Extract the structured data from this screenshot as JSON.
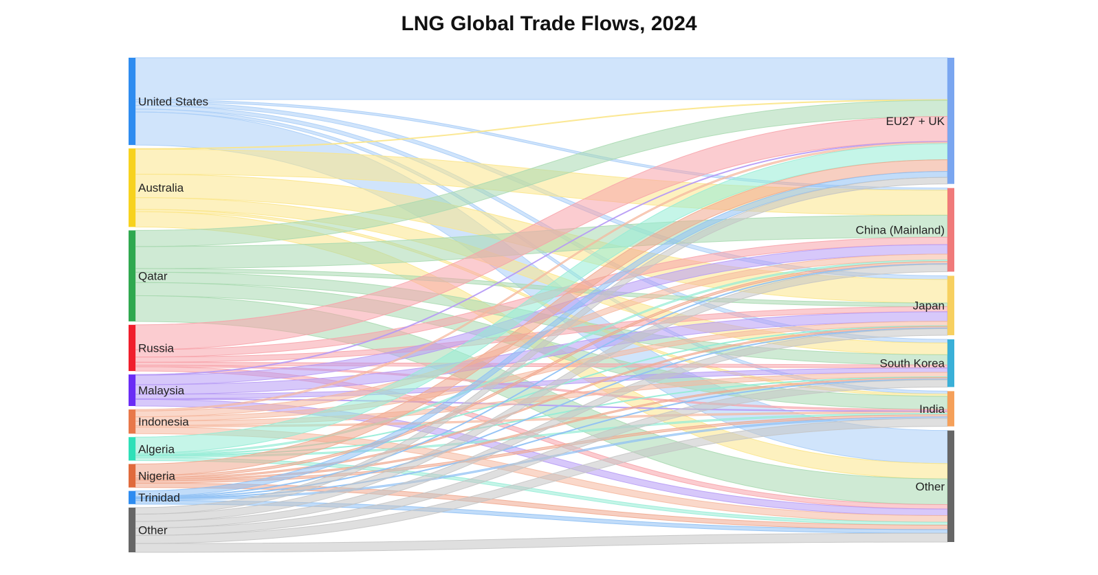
{
  "title": "LNG Global Trade Flows, 2024",
  "chart_data": {
    "type": "sankey",
    "title": "LNG Global Trade Flows, 2024",
    "sources": [
      {
        "name": "United States",
        "color": "#2e8cf0"
      },
      {
        "name": "Australia",
        "color": "#f7d21e"
      },
      {
        "name": "Qatar",
        "color": "#2fa84f"
      },
      {
        "name": "Russia",
        "color": "#f01e2c"
      },
      {
        "name": "Malaysia",
        "color": "#6a2cf5"
      },
      {
        "name": "Indonesia",
        "color": "#e8784a"
      },
      {
        "name": "Algeria",
        "color": "#2ee0b8"
      },
      {
        "name": "Nigeria",
        "color": "#e06a3c"
      },
      {
        "name": "Trinidad",
        "color": "#2e8cf0"
      },
      {
        "name": "Other",
        "color": "#666666"
      }
    ],
    "targets": [
      {
        "name": "EU27 + UK",
        "color": "#7aa6f0"
      },
      {
        "name": "China (Mainland)",
        "color": "#f07a7a"
      },
      {
        "name": "Japan",
        "color": "#f7d060"
      },
      {
        "name": "South Korea",
        "color": "#3ab0d8"
      },
      {
        "name": "India",
        "color": "#f5a05a"
      },
      {
        "name": "Other",
        "color": "#666666"
      }
    ],
    "link_colors": {
      "United States": "#a9cdf7",
      "Australia": "#fbe58a",
      "Qatar": "#a8d9b0",
      "Russia": "#f7a3aa",
      "Malaysia": "#b69af5",
      "Indonesia": "#f5b89f",
      "Algeria": "#95ecd6",
      "Nigeria": "#f0a88e",
      "Trinidad": "#8ec0f4",
      "Other": "#c4c4c4"
    },
    "flows": [
      {
        "source": "United States",
        "target": "EU27 + UK",
        "value": 57
      },
      {
        "source": "United States",
        "target": "China (Mainland)",
        "value": 3
      },
      {
        "source": "United States",
        "target": "Japan",
        "value": 5
      },
      {
        "source": "United States",
        "target": "South Korea",
        "value": 5
      },
      {
        "source": "United States",
        "target": "India",
        "value": 4
      },
      {
        "source": "United States",
        "target": "Other",
        "value": 45
      },
      {
        "source": "Australia",
        "target": "EU27 + UK",
        "value": 1
      },
      {
        "source": "Australia",
        "target": "China (Mainland)",
        "value": 34
      },
      {
        "source": "Australia",
        "target": "Japan",
        "value": 32
      },
      {
        "source": "Australia",
        "target": "South Korea",
        "value": 16
      },
      {
        "source": "Australia",
        "target": "India",
        "value": 3
      },
      {
        "source": "Australia",
        "target": "Other",
        "value": 21
      },
      {
        "source": "Qatar",
        "target": "EU27 + UK",
        "value": 22
      },
      {
        "source": "Qatar",
        "target": "China (Mainland)",
        "value": 30
      },
      {
        "source": "Qatar",
        "target": "Japan",
        "value": 5
      },
      {
        "source": "Qatar",
        "target": "South Korea",
        "value": 14
      },
      {
        "source": "Qatar",
        "target": "India",
        "value": 18
      },
      {
        "source": "Qatar",
        "target": "Other",
        "value": 35
      },
      {
        "source": "Russia",
        "target": "EU27 + UK",
        "value": 34
      },
      {
        "source": "Russia",
        "target": "China (Mainland)",
        "value": 10
      },
      {
        "source": "Russia",
        "target": "Japan",
        "value": 7
      },
      {
        "source": "Russia",
        "target": "South Korea",
        "value": 4
      },
      {
        "source": "Russia",
        "target": "India",
        "value": 2
      },
      {
        "source": "Russia",
        "target": "Other",
        "value": 6
      },
      {
        "source": "Malaysia",
        "target": "EU27 + UK",
        "value": 1
      },
      {
        "source": "Malaysia",
        "target": "China (Mainland)",
        "value": 13
      },
      {
        "source": "Malaysia",
        "target": "Japan",
        "value": 13
      },
      {
        "source": "Malaysia",
        "target": "South Korea",
        "value": 6
      },
      {
        "source": "Malaysia",
        "target": "India",
        "value": 1
      },
      {
        "source": "Malaysia",
        "target": "Other",
        "value": 9
      },
      {
        "source": "Indonesia",
        "target": "EU27 + UK",
        "value": 2
      },
      {
        "source": "Indonesia",
        "target": "China (Mainland)",
        "value": 8
      },
      {
        "source": "Indonesia",
        "target": "Japan",
        "value": 6
      },
      {
        "source": "Indonesia",
        "target": "South Korea",
        "value": 6
      },
      {
        "source": "Indonesia",
        "target": "India",
        "value": 2
      },
      {
        "source": "Indonesia",
        "target": "Other",
        "value": 9
      },
      {
        "source": "Algeria",
        "target": "EU27 + UK",
        "value": 22
      },
      {
        "source": "Algeria",
        "target": "China (Mainland)",
        "value": 2
      },
      {
        "source": "Algeria",
        "target": "Japan",
        "value": 1
      },
      {
        "source": "Algeria",
        "target": "South Korea",
        "value": 1
      },
      {
        "source": "Algeria",
        "target": "India",
        "value": 2
      },
      {
        "source": "Algeria",
        "target": "Other",
        "value": 4
      },
      {
        "source": "Nigeria",
        "target": "EU27 + UK",
        "value": 16
      },
      {
        "source": "Nigeria",
        "target": "China (Mainland)",
        "value": 3
      },
      {
        "source": "Nigeria",
        "target": "Japan",
        "value": 2
      },
      {
        "source": "Nigeria",
        "target": "South Korea",
        "value": 2
      },
      {
        "source": "Nigeria",
        "target": "India",
        "value": 3
      },
      {
        "source": "Nigeria",
        "target": "Other",
        "value": 6
      },
      {
        "source": "Trinidad",
        "target": "EU27 + UK",
        "value": 8
      },
      {
        "source": "Trinidad",
        "target": "China (Mainland)",
        "value": 1
      },
      {
        "source": "Trinidad",
        "target": "Japan",
        "value": 1
      },
      {
        "source": "Trinidad",
        "target": "South Korea",
        "value": 1
      },
      {
        "source": "Trinidad",
        "target": "India",
        "value": 2
      },
      {
        "source": "Trinidad",
        "target": "Other",
        "value": 5
      },
      {
        "source": "Other",
        "target": "EU27 + UK",
        "value": 9
      },
      {
        "source": "Other",
        "target": "China (Mainland)",
        "value": 10
      },
      {
        "source": "Other",
        "target": "Japan",
        "value": 9
      },
      {
        "source": "Other",
        "target": "South Korea",
        "value": 10
      },
      {
        "source": "Other",
        "target": "India",
        "value": 11
      },
      {
        "source": "Other",
        "target": "Other",
        "value": 12
      }
    ]
  }
}
